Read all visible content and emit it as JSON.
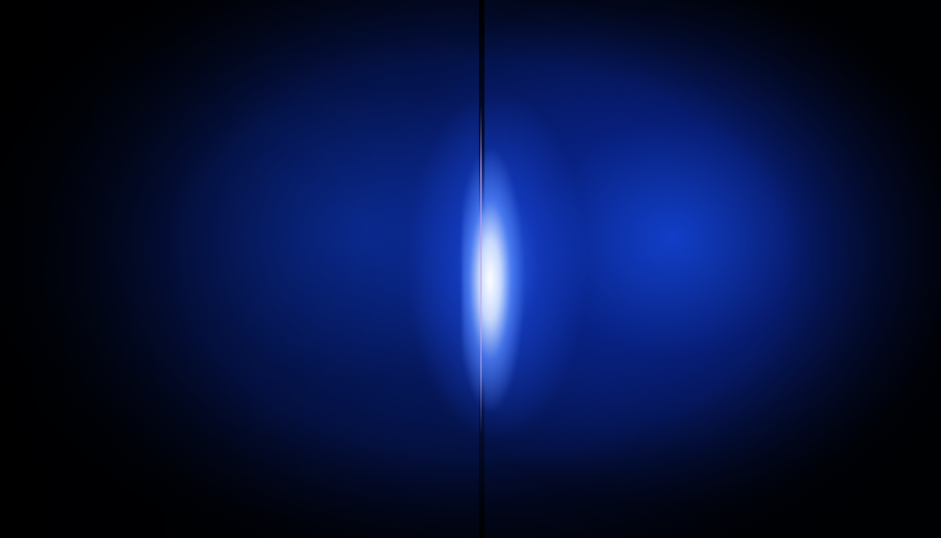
{
  "scene": {
    "description_colors": {
      "background": "#010512",
      "ambient_blue": "#1446dc",
      "core_light": "#ffffff",
      "seam": "#000000"
    }
  }
}
